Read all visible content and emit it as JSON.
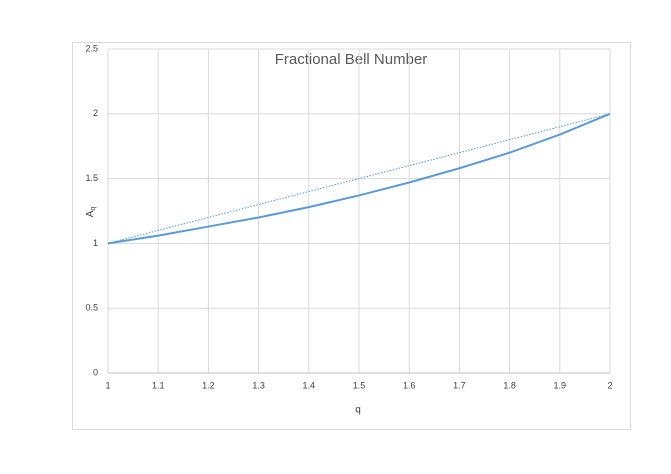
{
  "chart_data": {
    "type": "line",
    "title": "Fractional Bell Number",
    "xlabel": "q",
    "ylabel": "A",
    "ylabel_subscript": "q",
    "xlim": [
      1,
      2
    ],
    "xticks": [
      1,
      1.1,
      1.2,
      1.3,
      1.4,
      1.5,
      1.6,
      1.7,
      1.8,
      1.9,
      2
    ],
    "ylim": [
      0,
      2.5
    ],
    "yticks": [
      0,
      0.5,
      1,
      1.5,
      2,
      2.5
    ],
    "grid": true,
    "series": [
      {
        "color": "#5b9bd5",
        "style": "solid",
        "x": [
          1,
          1.1,
          1.2,
          1.3,
          1.4,
          1.5,
          1.6,
          1.7,
          1.8,
          1.9,
          2
        ],
        "values": [
          1,
          1.06,
          1.13,
          1.2,
          1.28,
          1.37,
          1.47,
          1.58,
          1.7,
          1.84,
          2
        ]
      },
      {
        "color": "#5b9bd5",
        "style": "dotted",
        "x": [
          1,
          2
        ],
        "values": [
          1,
          2
        ]
      }
    ]
  }
}
